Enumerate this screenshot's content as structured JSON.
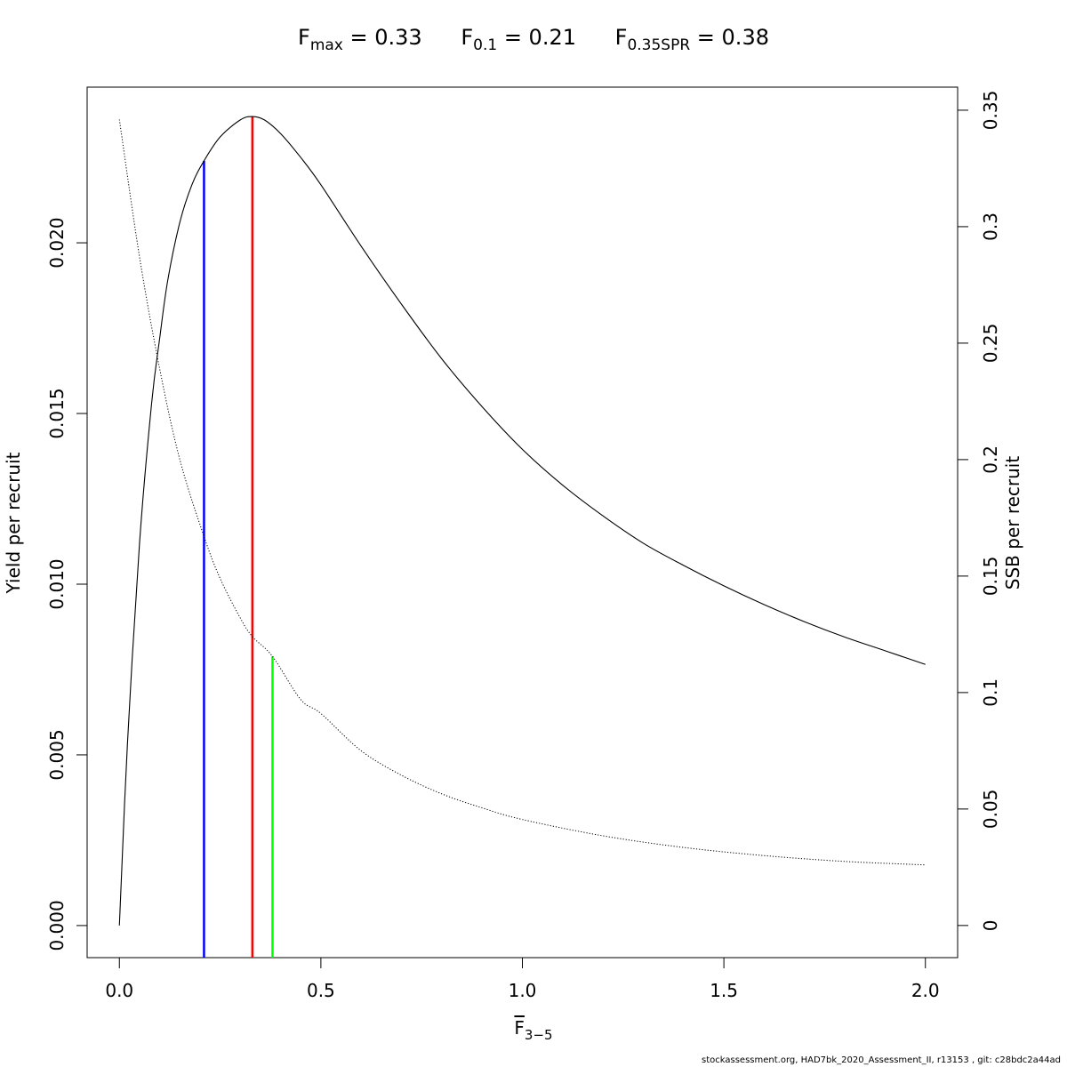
{
  "title_items": [
    {
      "sym": "F",
      "sub": "max",
      "rest": " = 0.33"
    },
    {
      "sym": "F",
      "sub": "0.1",
      "rest": " = 0.21"
    },
    {
      "sym": "F",
      "sub": "0.35SPR",
      "rest": " = 0.38"
    }
  ],
  "footer": "stockassessment.org, HAD7bk_2020_Assessment_II, r13153 , git: c28bdc2a44ad",
  "chart_data": {
    "type": "line",
    "xlabel": {
      "sym": "F",
      "sub": "3−5"
    },
    "ylabel": "Yield per recruit",
    "y2label": "SSB per recruit",
    "xlim": [
      -0.08,
      2.08
    ],
    "ylim": [
      -0.00094,
      0.02456
    ],
    "y2lim": [
      -0.0138,
      0.3599
    ],
    "x_ticks": [
      0,
      0.5,
      1,
      1.5,
      2
    ],
    "x_tick_labels": [
      "0.0",
      "0.5",
      "1.0",
      "1.5",
      "2.0"
    ],
    "y_ticks": [
      0,
      0.005,
      0.01,
      0.015,
      0.02
    ],
    "y_tick_labels": [
      "0.000",
      "0.005",
      "0.010",
      "0.015",
      "0.020"
    ],
    "y2_ticks": [
      0,
      0.05,
      0.1,
      0.15,
      0.2,
      0.25,
      0.3,
      0.35
    ],
    "y2_tick_labels": [
      "0",
      "0.05",
      "0.1",
      "0.15",
      "0.2",
      "0.25",
      "0.3",
      "0.35"
    ],
    "series": [
      {
        "axis": "left",
        "style": "solid",
        "color": "#000000",
        "x": [
          0,
          0.02,
          0.05,
          0.08,
          0.1,
          0.12,
          0.15,
          0.18,
          0.21,
          0.25,
          0.3,
          0.33,
          0.36,
          0.4,
          0.45,
          0.5,
          0.6,
          0.7,
          0.8,
          0.9,
          1.0,
          1.1,
          1.2,
          1.3,
          1.4,
          1.5,
          1.6,
          1.7,
          1.8,
          1.9,
          2.0
        ],
        "values": [
          0,
          0.00532,
          0.0112,
          0.0153,
          0.0172,
          0.0189,
          0.0206,
          0.0217,
          0.0224,
          0.0231,
          0.0236,
          0.0237,
          0.0236,
          0.0232,
          0.0225,
          0.0217,
          0.0199,
          0.0182,
          0.0166,
          0.0152,
          0.01395,
          0.0129,
          0.012,
          0.0112,
          0.01055,
          0.00995,
          0.0094,
          0.0089,
          0.00845,
          0.00805,
          0.00765
        ]
      },
      {
        "axis": "right",
        "style": "dotted",
        "color": "#000000",
        "x": [
          0,
          0.05,
          0.1,
          0.15,
          0.21,
          0.25,
          0.3,
          0.33,
          0.38,
          0.45,
          0.5,
          0.6,
          0.7,
          0.8,
          0.9,
          1.0,
          1.2,
          1.4,
          1.6,
          1.8,
          2.0
        ],
        "values": [
          0.346,
          0.287,
          0.239,
          0.2,
          0.167,
          0.149,
          0.132,
          0.124,
          0.1155,
          0.097,
          0.091,
          0.075,
          0.0645,
          0.0565,
          0.0505,
          0.0455,
          0.0385,
          0.0335,
          0.03,
          0.0275,
          0.026
        ]
      }
    ],
    "reference_lines": [
      {
        "x": 0.21,
        "y": 0.0224,
        "axis": "left",
        "color": "#0000ff"
      },
      {
        "x": 0.33,
        "y": 0.0237,
        "axis": "left",
        "color": "#ff0000"
      },
      {
        "x": 0.38,
        "y": 0.1155,
        "axis": "right",
        "color": "#00ff00"
      }
    ]
  }
}
